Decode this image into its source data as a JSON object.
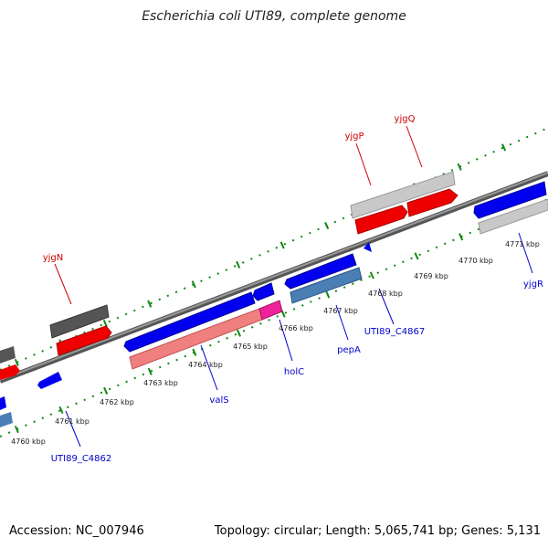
{
  "header": {
    "title": "Escherichia coli UTI89, complete genome"
  },
  "footer": {
    "accession": "Accession: NC_007946",
    "summary": "Topology: circular; Length: 5,065,741 bp; Genes: 5,131"
  },
  "colors": {
    "forward_gene": "#ee0000",
    "reverse_gene": "#0000ee",
    "gene_label_forward": "#cc0000",
    "gene_label_reverse": "#0000cc",
    "axis": "#777777",
    "tick": "#118811",
    "pseudo_gray": "#bbbbbb",
    "dark_gray": "#555555",
    "steel_blue": "#4a7fb5",
    "pink": "#f08080",
    "magenta": "#ee2299"
  },
  "scale_ticks": [
    "4760 kbp",
    "4761 kbp",
    "4762 kbp",
    "4763 kbp",
    "4764 kbp",
    "4765 kbp",
    "4766 kbp",
    "4767 kbp",
    "4768 kbp",
    "4769 kbp",
    "4770 kbp",
    "4771 kbp"
  ],
  "gene_labels": [
    "yjgQ",
    "yjgP",
    "yjgN",
    "UTI89_C4867",
    "pepA",
    "holC",
    "valS",
    "UTI89_C4862",
    "yjgR"
  ]
}
